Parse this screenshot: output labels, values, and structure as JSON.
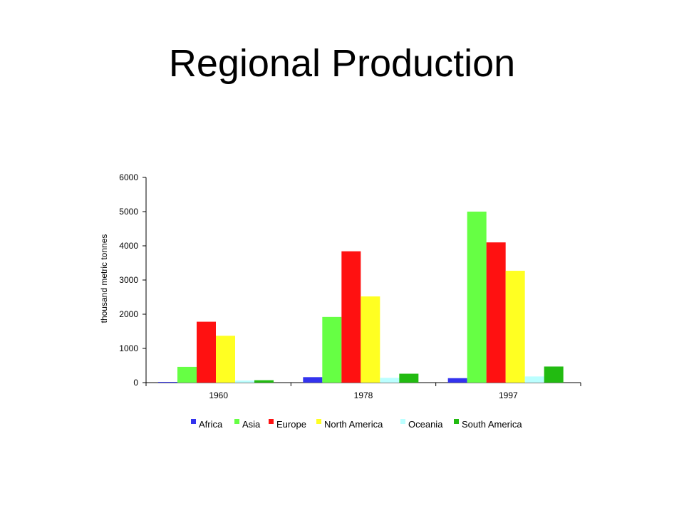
{
  "slide": {
    "title": "Regional Production"
  },
  "chart_data": {
    "type": "bar",
    "title": "",
    "xlabel": "",
    "ylabel": "thousand metric tonnes",
    "ylim": [
      0,
      6000
    ],
    "yticks": [
      0,
      1000,
      2000,
      3000,
      4000,
      5000,
      6000
    ],
    "categories": [
      "1960",
      "1978",
      "1997"
    ],
    "series": [
      {
        "name": "Africa",
        "color": "#3333ee",
        "values": [
          20,
          160,
          130
        ]
      },
      {
        "name": "Asia",
        "color": "#66ff44",
        "values": [
          460,
          1920,
          5000
        ]
      },
      {
        "name": "Europe",
        "color": "#ff1111",
        "values": [
          1780,
          3840,
          4100
        ]
      },
      {
        "name": "North America",
        "color": "#ffff22",
        "values": [
          1370,
          2520,
          3270
        ]
      },
      {
        "name": "Oceania",
        "color": "#bbffff",
        "values": [
          60,
          140,
          180
        ]
      },
      {
        "name": "South America",
        "color": "#22bb11",
        "values": [
          70,
          260,
          470
        ]
      }
    ],
    "grid": false,
    "legend_position": "bottom"
  }
}
